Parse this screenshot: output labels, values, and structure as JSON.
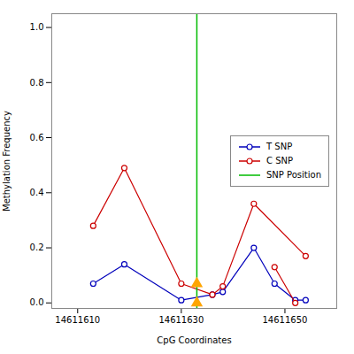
{
  "chart_data": {
    "type": "line",
    "xlabel": "CpG Coordinates",
    "ylabel": "Methylation Frequency",
    "xlim": [
      14611605,
      14611660
    ],
    "ylim": [
      -0.02,
      1.05
    ],
    "xticks": [
      14611610,
      14611630,
      14611650
    ],
    "yticks": [
      {
        "value": 0.0,
        "label": "0.0"
      },
      0.2,
      0.4,
      0.6,
      0.8,
      {
        "value": 1.0,
        "label": "1.0"
      }
    ],
    "grid": false,
    "legend": "center right",
    "series": [
      {
        "name": "T SNP",
        "color": "#0000bb",
        "marker": "circle",
        "x": [
          14611613,
          14611619,
          14611630,
          14611636,
          14611638,
          14611644,
          14611648,
          14611652,
          14611654
        ],
        "values": [
          0.07,
          0.14,
          0.01,
          0.03,
          0.04,
          0.2,
          0.07,
          0.01,
          0.01
        ]
      },
      {
        "name": "C SNP",
        "color": "#cc0000",
        "marker": "circle",
        "x": [
          14611613,
          14611619,
          14611630,
          14611636,
          14611638,
          14611644,
          14611654,
          null,
          14611648,
          14611652
        ],
        "values": [
          0.28,
          0.49,
          0.07,
          0.03,
          0.06,
          0.36,
          0.17,
          null,
          0.13,
          0.0
        ]
      },
      {
        "name": "SNP Position",
        "type": "vline",
        "color": "#00bb00",
        "x": [
          14611633
        ]
      },
      {
        "type": "scatter",
        "marker": "triangle",
        "color": "#FFA500",
        "x": [
          14611633,
          14611633
        ],
        "values": [
          0.0,
          0.07
        ]
      }
    ]
  }
}
